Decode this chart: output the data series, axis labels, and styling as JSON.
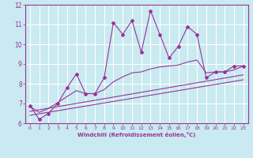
{
  "xlabel": "Windchill (Refroidissement éolien,°C)",
  "background_color": "#c8eaf0",
  "line_color": "#993399",
  "grid_color": "#ffffff",
  "xlim": [
    -0.5,
    23.5
  ],
  "ylim": [
    6,
    12
  ],
  "yticks": [
    6,
    7,
    8,
    9,
    10,
    11,
    12
  ],
  "xticks": [
    0,
    1,
    2,
    3,
    4,
    5,
    6,
    7,
    8,
    9,
    10,
    11,
    12,
    13,
    14,
    15,
    16,
    17,
    18,
    19,
    20,
    21,
    22,
    23
  ],
  "main_series_x": [
    0,
    1,
    2,
    3,
    4,
    5,
    6,
    7,
    8,
    9,
    10,
    11,
    12,
    13,
    14,
    15,
    16,
    17,
    18,
    19,
    20,
    21,
    22,
    23
  ],
  "main_series_y": [
    6.9,
    6.2,
    6.5,
    7.0,
    7.8,
    8.5,
    7.5,
    7.5,
    8.3,
    11.1,
    10.5,
    11.2,
    9.6,
    11.7,
    10.5,
    9.3,
    9.9,
    10.9,
    10.5,
    8.3,
    8.6,
    8.6,
    8.9,
    8.9
  ],
  "smooth1_x": [
    0,
    1,
    2,
    3,
    4,
    5,
    6,
    7,
    8,
    9,
    10,
    11,
    12,
    13,
    14,
    15,
    16,
    17,
    18,
    19,
    20,
    21,
    22,
    23
  ],
  "smooth1_y": [
    6.85,
    6.55,
    6.75,
    7.05,
    7.35,
    7.65,
    7.5,
    7.5,
    7.7,
    8.1,
    8.35,
    8.55,
    8.6,
    8.75,
    8.85,
    8.9,
    8.95,
    9.1,
    9.2,
    8.55,
    8.6,
    8.6,
    8.7,
    8.9
  ],
  "trend1_x": [
    0,
    23
  ],
  "trend1_y": [
    6.6,
    8.45
  ],
  "trend2_x": [
    0,
    23
  ],
  "trend2_y": [
    6.4,
    8.2
  ]
}
